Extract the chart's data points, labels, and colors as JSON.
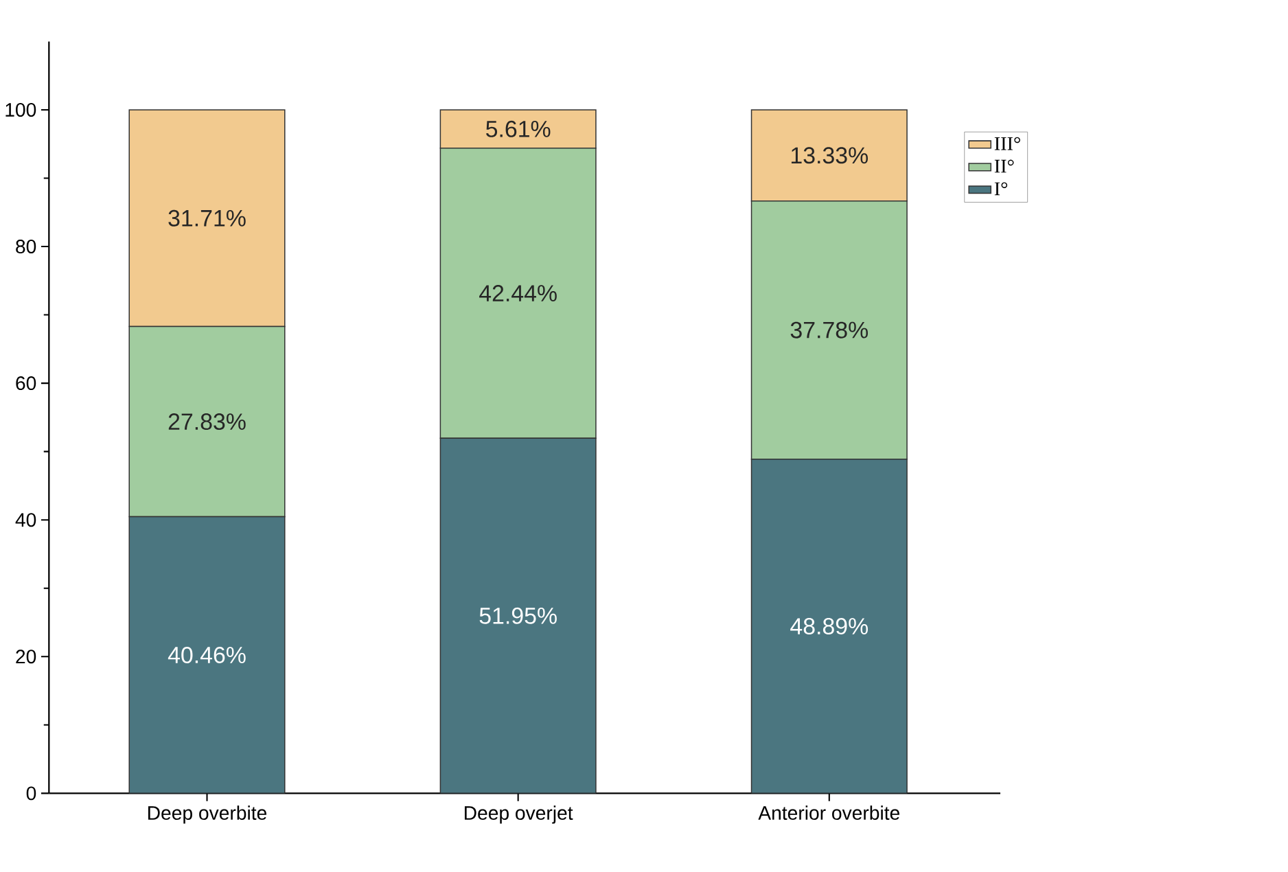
{
  "chart_data": {
    "type": "bar",
    "stacked": true,
    "categories": [
      "Deep overbite",
      "Deep overjet",
      "Anterior overbite"
    ],
    "series": [
      {
        "name": "I°",
        "color": "#4b7680",
        "values": [
          40.46,
          51.95,
          48.89
        ],
        "value_labels": [
          "40.46%",
          "51.95%",
          "48.89%"
        ]
      },
      {
        "name": "II°",
        "color": "#a1cc9f",
        "values": [
          27.83,
          42.44,
          37.78
        ],
        "value_labels": [
          "27.83%",
          "42.44%",
          "37.78%"
        ]
      },
      {
        "name": "III°",
        "color": "#f2ca8f",
        "values": [
          31.71,
          5.61,
          13.33
        ],
        "value_labels": [
          "31.71%",
          "5.61%",
          "13.33%"
        ]
      }
    ],
    "ylim": [
      0,
      110
    ],
    "yticks": [
      0,
      20,
      40,
      60,
      80,
      100
    ],
    "grid": false,
    "legend": "top right"
  }
}
